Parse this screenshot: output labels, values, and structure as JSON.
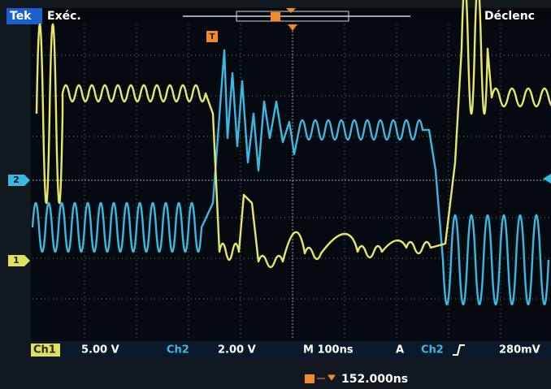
{
  "header": {
    "brand": "Tek",
    "mode": "Exéc.",
    "trigger_menu": "Déclenc"
  },
  "markers": {
    "trigger": "T",
    "ch2": "2",
    "ch1": "1"
  },
  "status": {
    "ch1_label": "Ch1",
    "ch1_scale": "5.00 V",
    "ch2_label": "Ch2",
    "ch2_scale": "2.00 V",
    "timebase": "M 100ns",
    "acq": "A",
    "trig_source": "Ch2",
    "trig_level": "280mV"
  },
  "footer": {
    "trigger_position": "152.000ns"
  }
}
